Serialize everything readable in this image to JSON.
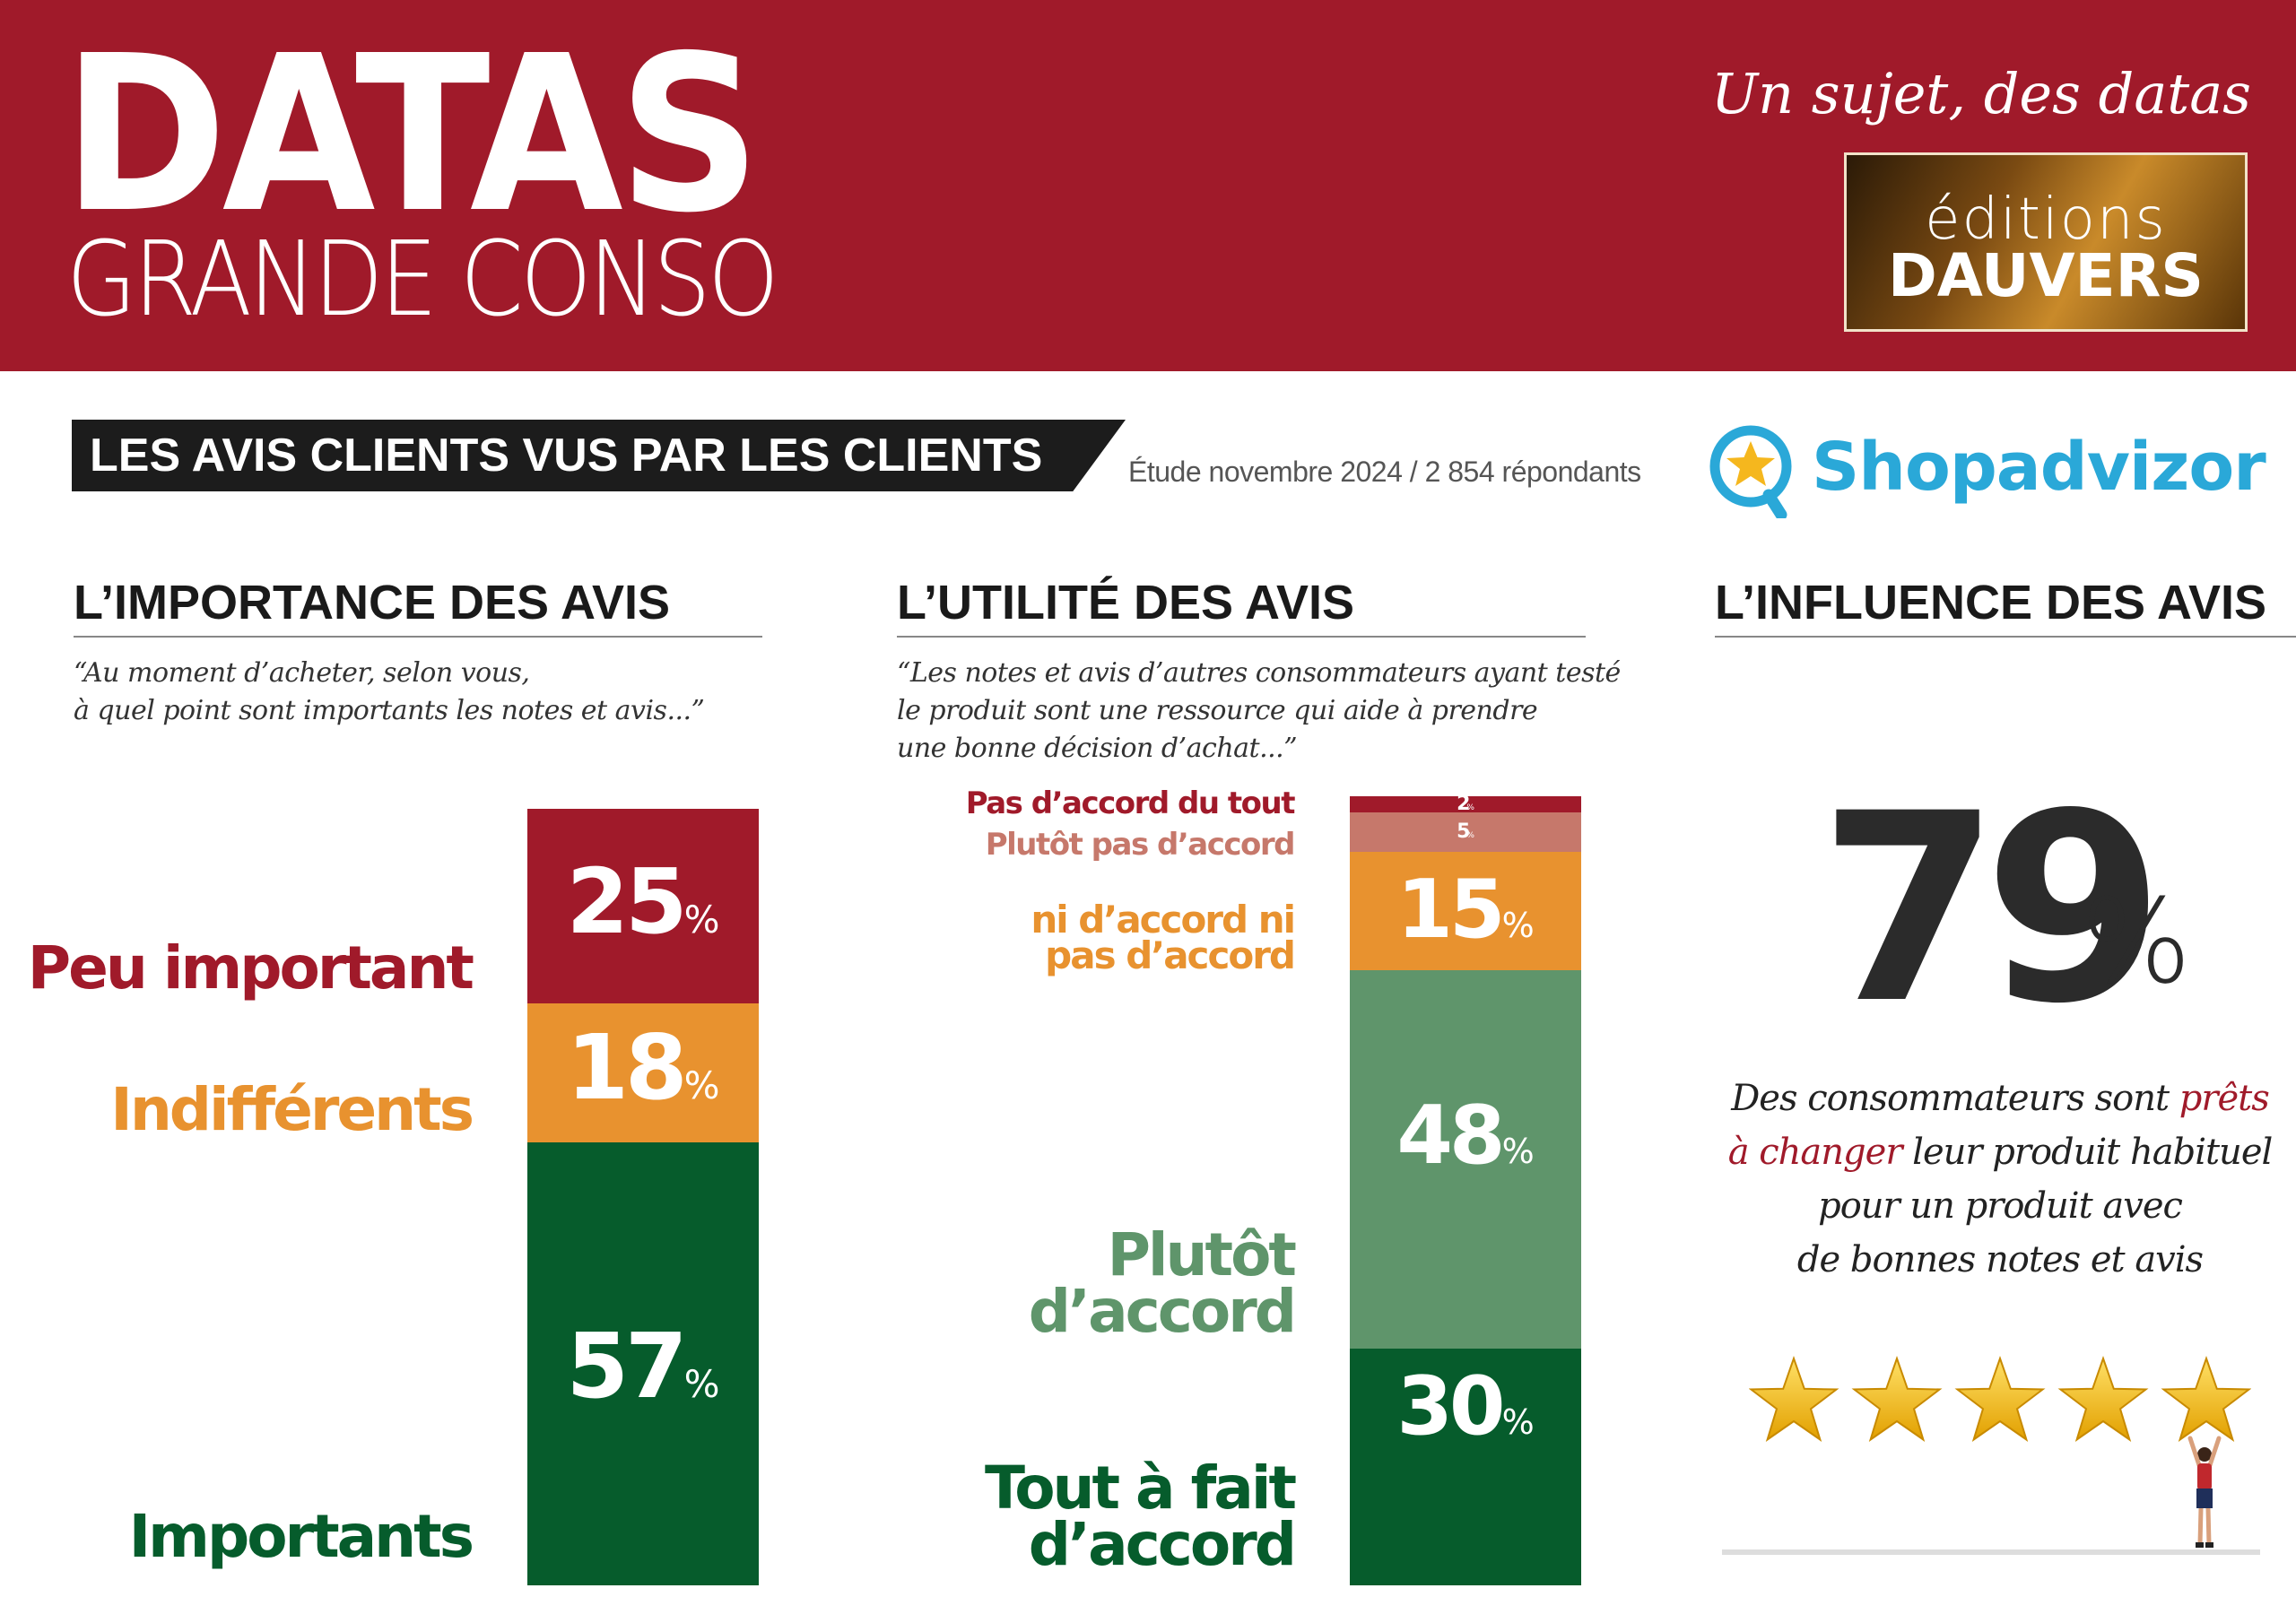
{
  "header": {
    "title": "DATAS",
    "subtitle": "GRANDE CONSO",
    "tagline": "Un sujet, des datas",
    "publisher_line1": "éditions",
    "publisher_line2": "DAUVERS",
    "brand_color": "#a01a2a"
  },
  "banner": {
    "title": "LES AVIS CLIENTS VUS PAR LES CLIENTS",
    "study": "Étude novembre 2024 / 2 854 répondants",
    "partner": "Shopadvizor",
    "partner_icon": "star-magnifier-icon"
  },
  "importance": {
    "title": "L’IMPORTANCE DES AVIS",
    "quote_line1": "“Au moment d’acheter, selon vous,",
    "quote_line2": "à quel point sont importants les notes et avis...”"
  },
  "utilite": {
    "title": "L’UTILITÉ DES AVIS",
    "quote_line1": "“Les notes et avis d’autres consommateurs ayant testé",
    "quote_line2": "le produit sont une ressource qui aide à prendre",
    "quote_line3": "une bonne décision d’achat...”"
  },
  "influence": {
    "title": "L’INFLUENCE DES AVIS",
    "value": "79",
    "unit": "%",
    "text_part1": "Des consommateurs sont ",
    "text_highlight1": "prêts",
    "text_highlight2": "à changer",
    "text_part2": " leur produit habituel",
    "text_line3": "pour un produit avec",
    "text_line4": "de bonnes notes et avis",
    "stars": 5,
    "star_icon": "star-icon",
    "highlight_color": "#a01a2a"
  },
  "chart_data": [
    {
      "type": "bar",
      "stacked": true,
      "unit": "%",
      "series": [
        {
          "name": "Importants",
          "value": 57,
          "color": "#065c2c"
        },
        {
          "name": "Indifférents",
          "value": 18,
          "color": "#e8922f"
        },
        {
          "name": "Peu important",
          "value": 25,
          "color": "#a01a2a"
        }
      ]
    },
    {
      "type": "bar",
      "stacked": true,
      "unit": "%",
      "series": [
        {
          "name": "Tout à fait d’accord",
          "value": 30,
          "color": "#065c2c"
        },
        {
          "name": "Plutôt d’accord",
          "value": 48,
          "color": "#5f956b"
        },
        {
          "name": "ni d’accord ni pas d’accord",
          "value": 15,
          "color": "#e8922f"
        },
        {
          "name": "Plutôt pas d’accord",
          "value": 5,
          "color": "#c6786b"
        },
        {
          "name": "Pas d’accord du tout",
          "value": 2,
          "color": "#a01a2a"
        }
      ]
    }
  ]
}
